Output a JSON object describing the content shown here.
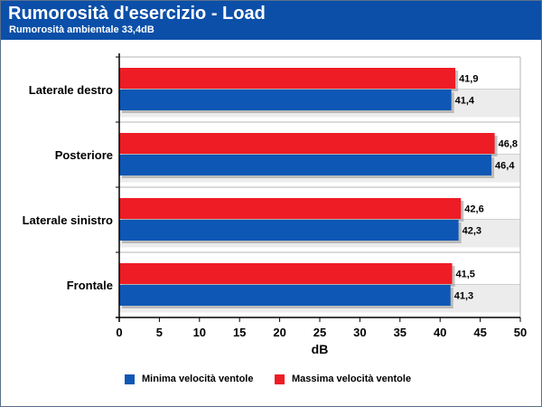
{
  "header": {
    "title": "Rumorosità d'esercizio - Load",
    "subtitle": "Rumorosità ambientale 33,4dB"
  },
  "colors": {
    "header_bg": "#0b4fa8",
    "series_min": "#0e57b4",
    "series_max": "#ee1c25",
    "band": "#ececec"
  },
  "chart_data": {
    "type": "bar",
    "orientation": "horizontal",
    "categories": [
      "Laterale destro",
      "Posteriore",
      "Laterale sinistro",
      "Frontale"
    ],
    "series": [
      {
        "name": "Massima velocità ventole",
        "values": [
          41.9,
          46.8,
          42.6,
          41.5
        ],
        "labels": [
          "41,9",
          "46,8",
          "42,6",
          "41,5"
        ]
      },
      {
        "name": "Minima velocità ventole",
        "values": [
          41.4,
          46.4,
          42.3,
          41.3
        ],
        "labels": [
          "41,4",
          "46,4",
          "42,3",
          "41,3"
        ]
      }
    ],
    "xlabel": "dB",
    "xlim": [
      0,
      50
    ],
    "xticks": [
      0,
      5,
      10,
      15,
      20,
      25,
      30,
      35,
      40,
      45,
      50
    ],
    "grid": true,
    "legend_position": "bottom"
  },
  "legend": {
    "items": [
      {
        "label": "Minima velocità ventole"
      },
      {
        "label": "Massima velocità ventole"
      }
    ]
  }
}
